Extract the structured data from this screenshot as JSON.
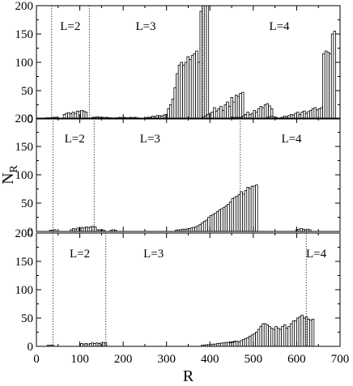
{
  "chart_data": {
    "type": "bar",
    "xlabel": "R",
    "ylabel": "N",
    "ylabel_sub": "R",
    "xlim": [
      0,
      700
    ],
    "ylim": [
      0,
      200
    ],
    "x_ticks": [
      "0",
      "100",
      "200",
      "300",
      "400",
      "500",
      "600",
      "700"
    ],
    "y_ticks": [
      "0",
      "50",
      "100",
      "150",
      "200"
    ],
    "panels": [
      {
        "dividers": [
          35,
          122,
          383
        ],
        "regions": [
          {
            "label": "L=2",
            "x": 78
          },
          {
            "label": "L=3",
            "x": 252
          },
          {
            "label": "L=4",
            "x": 560
          }
        ],
        "segments": [
          {
            "start": 20,
            "values": [
              2,
              2,
              2,
              3,
              3,
              3
            ]
          },
          {
            "start": 62,
            "values": [
              8,
              10,
              11,
              9,
              12,
              10,
              14,
              13,
              15,
              14,
              12
            ]
          },
          {
            "start": 128,
            "values": [
              3,
              3,
              4,
              3,
              3,
              2
            ]
          },
          {
            "start": 150,
            "values": [
              3,
              2,
              3,
              2,
              2
            ]
          },
          {
            "start": 180,
            "values": [
              2,
              2,
              3,
              2,
              3,
              2,
              2,
              3,
              2,
              3,
              2
            ]
          },
          {
            "start": 250,
            "values": [
              2,
              3,
              3,
              3
            ]
          },
          {
            "start": 266,
            "values": [
              5,
              4,
              6,
              5,
              4
            ]
          },
          {
            "start": 282,
            "values": [
              6,
              5,
              7,
              8,
              9,
              15,
              10,
              20,
              6
            ]
          },
          {
            "start": 302,
            "values": [
              18,
              25,
              35,
              55,
              80,
              95,
              100,
              95,
              100,
              110,
              105,
              112,
              115,
              120,
              100,
              190,
              200,
              200,
              200
            ]
          },
          {
            "start": 383,
            "values": [
              4,
              5,
              8,
              10,
              12,
              20,
              14,
              18,
              22,
              15,
              25,
              30,
              22,
              38,
              30,
              42,
              40,
              45,
              47
            ]
          },
          {
            "start": 450,
            "values": [
              3,
              2,
              3,
              2,
              3,
              2,
              3
            ]
          },
          {
            "start": 470,
            "values": [
              3,
              5,
              8,
              12,
              8,
              10,
              15,
              12,
              18,
              22,
              20,
              25,
              27,
              23,
              18
            ]
          },
          {
            "start": 530,
            "values": [
              3,
              4,
              5,
              4,
              3
            ]
          },
          {
            "start": 560,
            "values": [
              2,
              3,
              5,
              4,
              6,
              8,
              7,
              10,
              12,
              8,
              12,
              14,
              10,
              13,
              15,
              18,
              20,
              16,
              18,
              20,
              22,
              25,
              35
            ]
          },
          {
            "start": 660,
            "values": [
              115,
              120,
              118,
              115,
              150,
              155
            ]
          }
        ]
      },
      {
        "dividers": [
          38,
          133,
          470
        ],
        "regions": [
          {
            "label": "L=2",
            "x": 88
          },
          {
            "label": "L=3",
            "x": 262
          },
          {
            "label": "L=4",
            "x": 588
          }
        ],
        "segments": [
          {
            "start": 30,
            "values": [
              2,
              2,
              3
            ]
          },
          {
            "start": 78,
            "values": [
              3,
              5,
              4,
              6,
              5,
              7,
              6,
              8,
              7,
              8,
              9,
              8
            ]
          },
          {
            "start": 138,
            "values": [
              3,
              3,
              3
            ]
          },
          {
            "start": 148,
            "values": [
              3,
              2
            ]
          },
          {
            "start": 170,
            "values": [
              2,
              3,
              2
            ]
          },
          {
            "start": 320,
            "values": [
              2,
              3,
              3,
              4,
              4,
              4,
              5,
              4,
              5,
              6,
              6
            ]
          },
          {
            "start": 345,
            "values": [
              4,
              5,
              6,
              7,
              8,
              10,
              12,
              15,
              18,
              20,
              25,
              28,
              30,
              32,
              35,
              38,
              40,
              42,
              45,
              48,
              52,
              58,
              60,
              62,
              65,
              70,
              66,
              72,
              78,
              76,
              80,
              80,
              82
            ]
          },
          {
            "start": 598,
            "values": [
              3,
              4,
              5,
              4,
              3,
              4,
              3
            ]
          }
        ]
      },
      {
        "dividers": [
          38,
          160,
          622
        ],
        "regions": [
          {
            "label": "L=2",
            "x": 100
          },
          {
            "label": "L=3",
            "x": 270
          },
          {
            "label": "L=4",
            "x": 645
          }
        ],
        "segments": [
          {
            "start": 25,
            "values": [
              2,
              2,
              2
            ]
          },
          {
            "start": 102,
            "values": [
              5,
              4,
              5,
              4,
              5,
              6,
              5,
              6,
              5,
              6,
              7,
              6
            ]
          },
          {
            "start": 380,
            "values": [
              2,
              2,
              3,
              3
            ]
          },
          {
            "start": 400,
            "values": [
              3,
              4,
              4,
              5,
              5,
              6,
              6,
              7,
              7,
              8,
              8,
              9
            ]
          },
          {
            "start": 445,
            "values": [
              6,
              7,
              8,
              9,
              8,
              10,
              12,
              14,
              15,
              18,
              20,
              22,
              24,
              25,
              25
            ]
          },
          {
            "start": 505,
            "values": [
              25,
              30,
              35,
              40,
              40,
              38,
              35,
              32,
              30,
              35,
              32,
              30,
              35,
              38,
              32,
              35,
              40,
              45,
              45,
              50,
              52,
              55,
              50,
              52,
              48,
              46,
              48
            ]
          }
        ]
      }
    ]
  }
}
